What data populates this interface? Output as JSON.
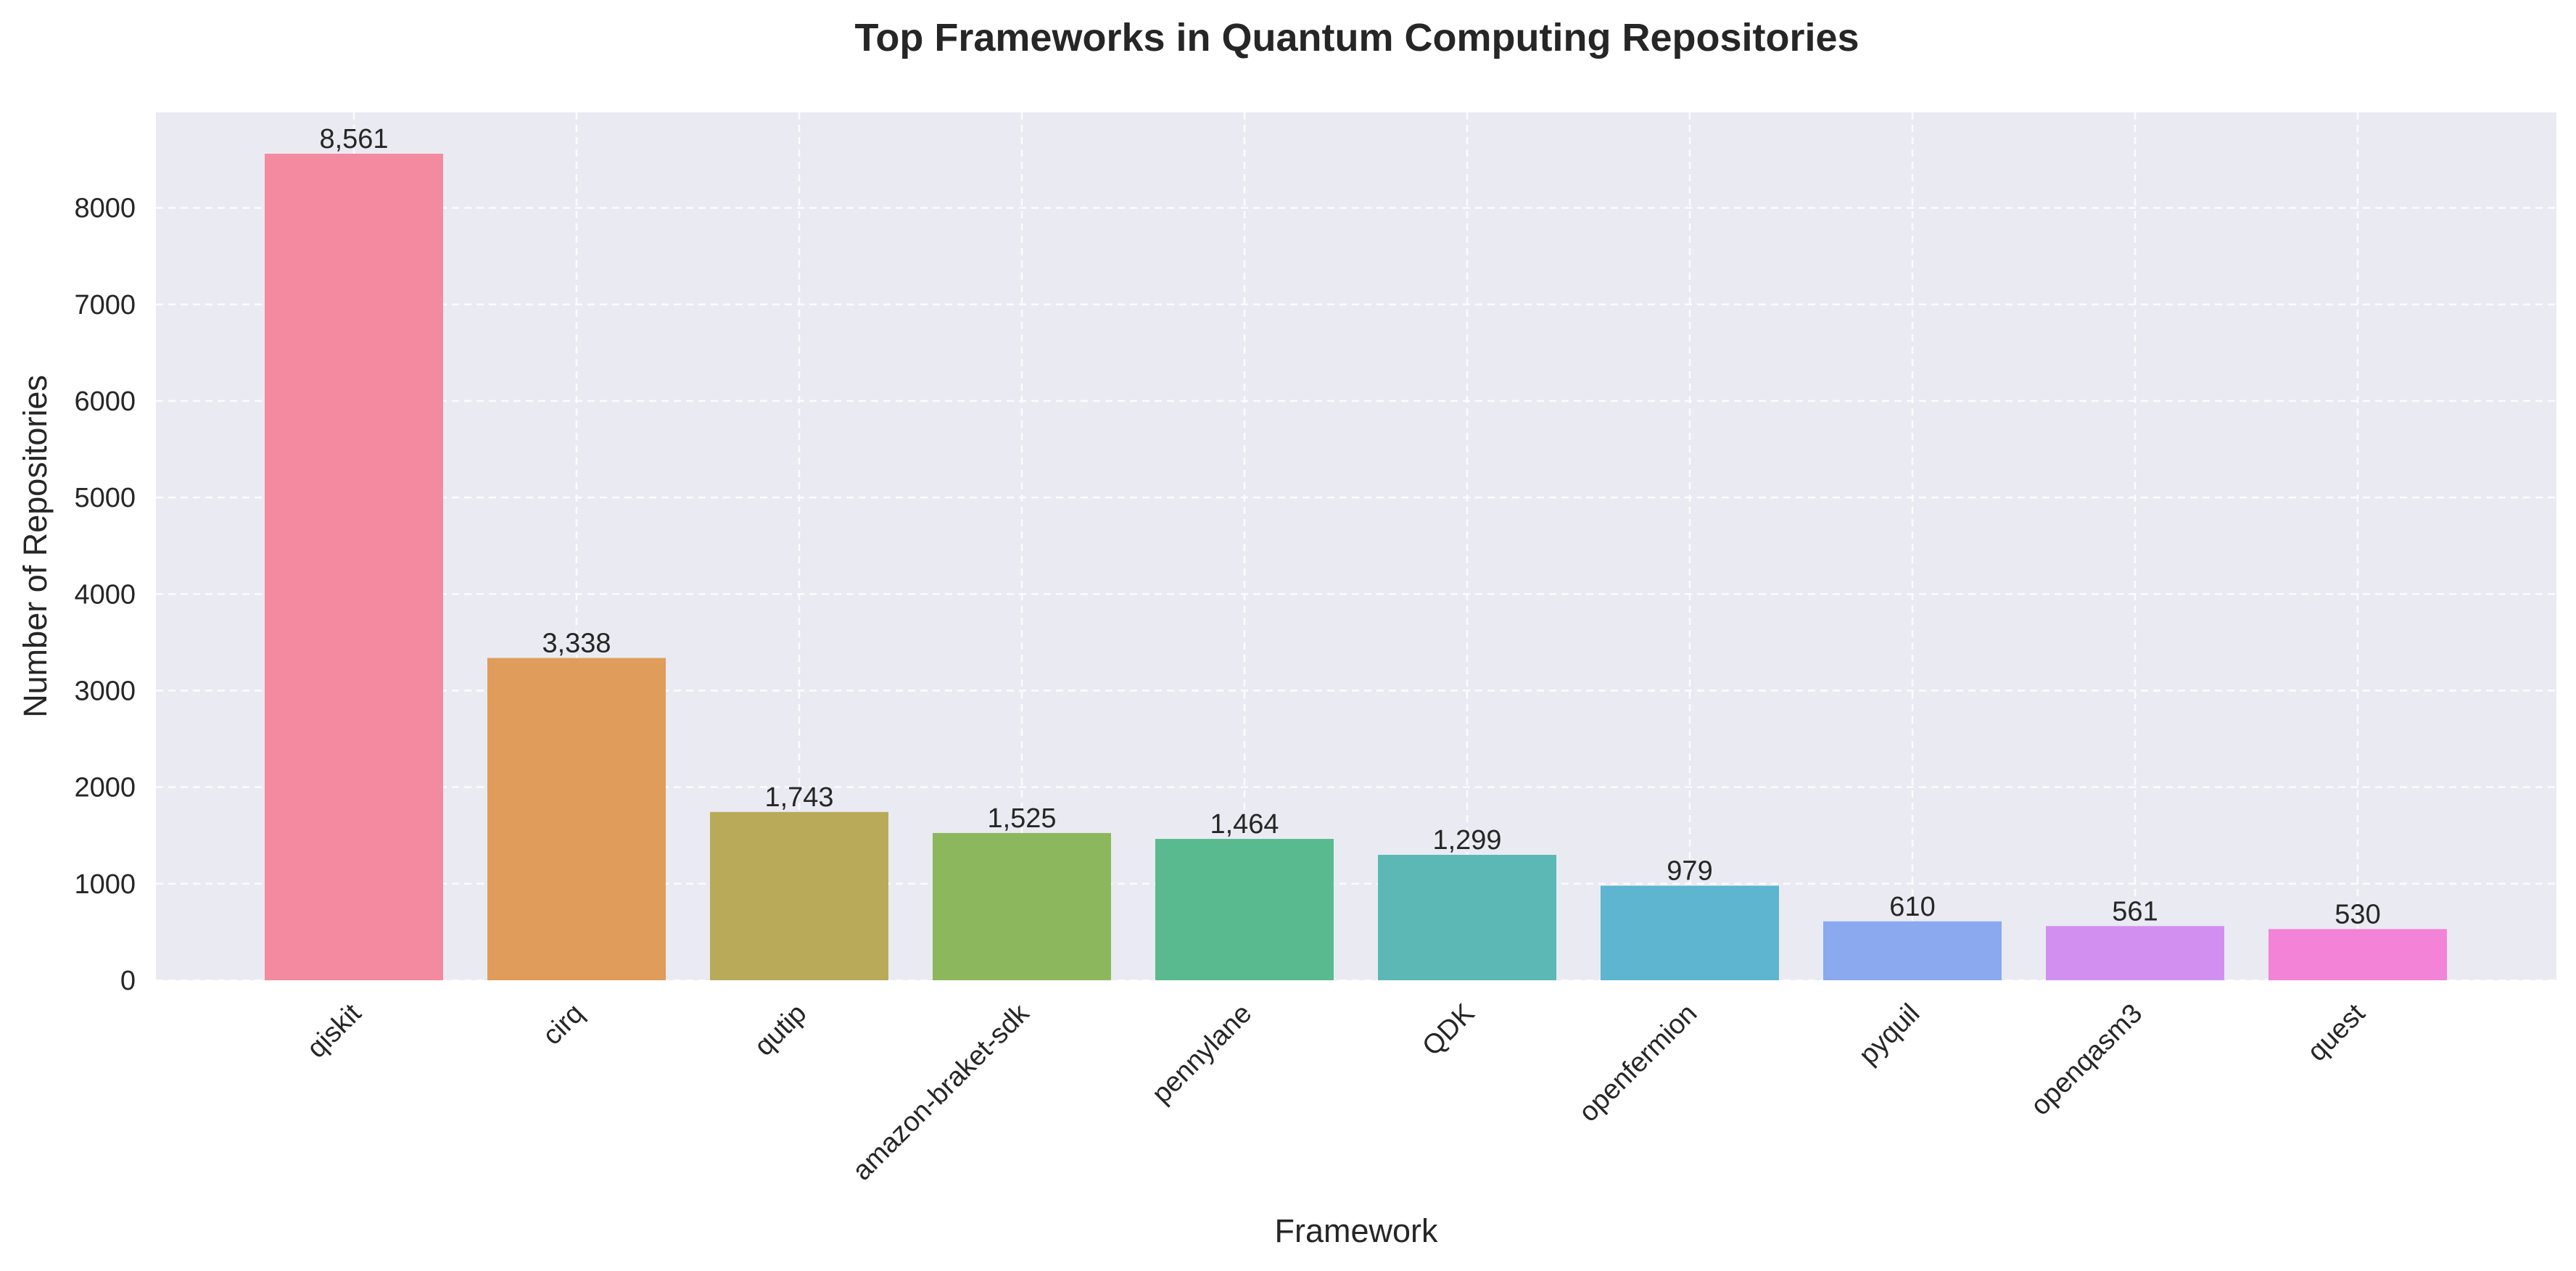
{
  "chart_data": {
    "type": "bar",
    "title": "Top Frameworks in Quantum Computing Repositories",
    "xlabel": "Framework",
    "ylabel": "Number of Repositories",
    "categories": [
      "qiskit",
      "cirq",
      "qutip",
      "amazon-braket-sdk",
      "pennylane",
      "QDK",
      "openfermion",
      "pyquil",
      "openqasm3",
      "quest"
    ],
    "values": [
      8561,
      3338,
      1743,
      1525,
      1464,
      1299,
      979,
      610,
      561,
      530
    ],
    "value_labels": [
      "8,561",
      "3,338",
      "1,743",
      "1,525",
      "1,464",
      "1,299",
      "979",
      "610",
      "561",
      "530"
    ],
    "colors": [
      "#f38a9f",
      "#df9c5a",
      "#b9aa5a",
      "#8db75c",
      "#5aba8f",
      "#5bb8b4",
      "#5db5cf",
      "#8aa9ef",
      "#d38ff0",
      "#f283d6"
    ],
    "yticks": [
      0,
      1000,
      2000,
      3000,
      4000,
      5000,
      6000,
      7000,
      8000
    ],
    "ylim": [
      0,
      8989
    ],
    "grid": true,
    "grid_style": "dashed",
    "plot_background": "#eaeaf2",
    "x_tick_rotation": 45
  }
}
